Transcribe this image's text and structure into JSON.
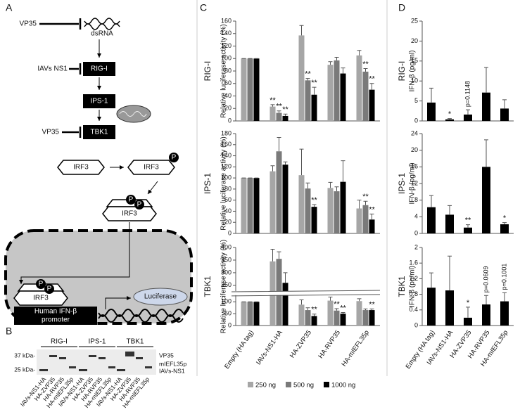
{
  "panel_labels": [
    "A",
    "B",
    "C",
    "D"
  ],
  "diagram": {
    "inhibitor_top": "VP35",
    "dsrna": "dsRNA",
    "inhibitor_ns1": "IAVs NS1",
    "rig": "RIG-I",
    "ips": "IPS-1",
    "inhibitor_tbk": "VP35",
    "tbk": "TBK1",
    "irf3": [
      "IRF3",
      "IRF3",
      "IRF3",
      "IRF3"
    ],
    "phospho": [
      "P",
      "P",
      "P",
      "P",
      "P"
    ],
    "promoter": [
      "Human IFN-β",
      "promoter"
    ],
    "reporter": "Luciferase"
  },
  "blot": {
    "markers": [
      "37 kDa-",
      "25 kDa-"
    ],
    "bands": [
      "VP35",
      "mIEFL35p",
      "IAVs-NS1"
    ],
    "groups": [
      {
        "name": "RIG-I",
        "lanes": [
          "IAVs-NS1-HA",
          "HA-ZVP35",
          "HA-RVP35",
          "HA-mIEFL35p"
        ]
      },
      {
        "name": "IPS-1",
        "lanes": [
          "IAVs-NS1-HA",
          "HA-ZVP35",
          "HA-RVP35",
          "HA-mIEFL35p"
        ]
      },
      {
        "name": "TBK1",
        "lanes": [
          "IAVs-NS1-HA",
          "HA-ZVP35",
          "HA-RVP35",
          "HA-mIEFL35p"
        ]
      }
    ]
  },
  "chart_data": [
    {
      "type": "bar",
      "title": "RIG-I",
      "y_label": "Relative luciferase activity (%)",
      "ylim": [
        0,
        160
      ],
      "yticks": [
        0,
        20,
        40,
        60,
        80,
        100,
        120,
        140,
        160
      ],
      "series": [
        {
          "color": "#a6a6a6",
          "values": [
            100,
            23,
            137,
            90,
            105
          ],
          "errors": [
            0,
            3,
            16,
            5,
            8
          ],
          "labels": [
            null,
            "**",
            null,
            null,
            null
          ]
        },
        {
          "color": "#7a7a7a",
          "values": [
            100,
            13,
            65,
            97,
            79
          ],
          "errors": [
            0,
            3,
            3,
            5,
            5
          ],
          "labels": [
            null,
            "**",
            "**",
            null,
            "**"
          ]
        },
        {
          "color": "#000000",
          "values": [
            100,
            8,
            42,
            76,
            50
          ],
          "errors": [
            0,
            3,
            12,
            9,
            10
          ],
          "labels": [
            null,
            "**",
            "**",
            null,
            "**"
          ]
        }
      ]
    },
    {
      "type": "bar",
      "title": "IPS-1",
      "y_label": "Relative luciferase activity (%)",
      "ylim": [
        0,
        180
      ],
      "yticks": [
        0,
        20,
        40,
        60,
        80,
        100,
        120,
        140,
        160,
        180
      ],
      "series": [
        {
          "color": "#a6a6a6",
          "values": [
            100,
            112,
            105,
            82,
            45
          ],
          "errors": [
            0,
            10,
            47,
            10,
            15
          ],
          "labels": [
            null,
            null,
            null,
            null,
            null
          ]
        },
        {
          "color": "#7a7a7a",
          "values": [
            100,
            148,
            81,
            76,
            51
          ],
          "errors": [
            0,
            25,
            10,
            8,
            7
          ],
          "labels": [
            null,
            null,
            null,
            null,
            "**"
          ]
        },
        {
          "color": "#000000",
          "values": [
            100,
            124,
            48,
            93,
            25
          ],
          "errors": [
            0,
            5,
            4,
            38,
            10
          ],
          "labels": [
            null,
            null,
            "**",
            null,
            "**"
          ]
        }
      ]
    },
    {
      "type": "bar",
      "title": "TBK1",
      "y_label": "Relative luciferase activity (%)",
      "ylim": [
        0,
        400
      ],
      "ybreak": [
        125,
        230
      ],
      "yticks": [
        0,
        50,
        100,
        250,
        300,
        350,
        400
      ],
      "categories": [
        "Empty (HA tag)",
        "IAVs-NS1-HA",
        "HA-ZVP35",
        "HA-RVP35",
        "HA-mIEFL35p"
      ],
      "series": [
        {
          "name": "250 ng",
          "color": "#a6a6a6",
          "values": [
            100,
            345,
            88,
            105,
            103
          ],
          "errors": [
            0,
            48,
            20,
            15,
            10
          ],
          "labels": [
            null,
            null,
            null,
            null,
            null
          ]
        },
        {
          "name": "500 ng",
          "color": "#7a7a7a",
          "values": [
            100,
            355,
            65,
            63,
            65
          ],
          "errors": [
            0,
            28,
            10,
            8,
            5
          ],
          "labels": [
            null,
            null,
            null,
            "**",
            null
          ]
        },
        {
          "name": "1000 ng",
          "color": "#000000",
          "values": [
            100,
            260,
            40,
            50,
            65
          ],
          "errors": [
            0,
            40,
            8,
            5,
            5
          ],
          "labels": [
            null,
            null,
            "**",
            "**",
            "**"
          ]
        }
      ]
    },
    {
      "type": "bar",
      "title": "RIG-I",
      "y_label": "IFN-β (pg/ml)",
      "ylim": [
        0,
        25
      ],
      "yticks": [
        0,
        5,
        10,
        15,
        20,
        25
      ],
      "series": [
        {
          "color": "#000000",
          "values": [
            4.6,
            0.4,
            1.6,
            7.1,
            3.1
          ],
          "errors": [
            3.6,
            0.2,
            1.2,
            6.3,
            2.2
          ],
          "labels": [
            null,
            "*",
            "p=0.1148",
            null,
            null
          ]
        }
      ]
    },
    {
      "type": "bar",
      "title": "IPS-1",
      "y_label": "IFN-β (pg/ml)",
      "ylim": [
        0,
        24
      ],
      "yticks": [
        0,
        4,
        8,
        12,
        16,
        20,
        24
      ],
      "series": [
        {
          "color": "#000000",
          "values": [
            6.3,
            4.5,
            1.4,
            16,
            2.2
          ],
          "errors": [
            2.8,
            2.2,
            0.7,
            6.5,
            0.4
          ],
          "labels": [
            null,
            null,
            "**",
            null,
            "*"
          ]
        }
      ]
    },
    {
      "type": "bar",
      "title": "TBK1",
      "y_label": "IFN-β (pg/ml)",
      "ylim": [
        0,
        2
      ],
      "yticks": [
        0,
        0.4,
        0.8,
        1.2,
        1.6,
        2
      ],
      "categories": [
        "Empty (HA tag)",
        "IAVs-NS1-HA",
        "HA-ZVP35",
        "HA-RVP35",
        "HA-mIEFL35p"
      ],
      "series": [
        {
          "color": "#000000",
          "values": [
            0.97,
            0.9,
            0.2,
            0.54,
            0.62
          ],
          "errors": [
            0.38,
            0.88,
            0.27,
            0.23,
            0.22
          ],
          "labels": [
            null,
            null,
            "*",
            "p=0.0609",
            "p=0.1001"
          ]
        }
      ]
    }
  ]
}
